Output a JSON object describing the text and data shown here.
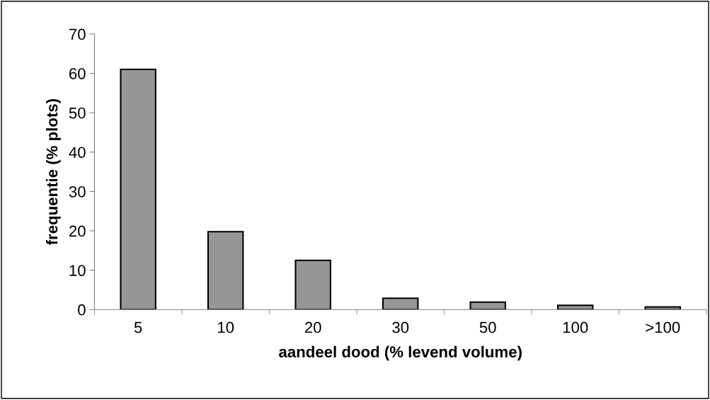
{
  "chart_data": {
    "type": "bar",
    "xlabel": "aandeel dood (% levend volume)",
    "ylabel": "frequentie (% plots)",
    "categories": [
      "5",
      "10",
      "20",
      "30",
      "50",
      "100",
      ">100"
    ],
    "values": [
      61.0,
      19.8,
      12.5,
      2.9,
      1.9,
      1.1,
      0.7
    ],
    "color": "#969696",
    "ylim": [
      0,
      70
    ],
    "yticks": [
      0,
      10,
      20,
      30,
      40,
      50,
      60,
      70
    ],
    "grid": false,
    "legend": false
  }
}
